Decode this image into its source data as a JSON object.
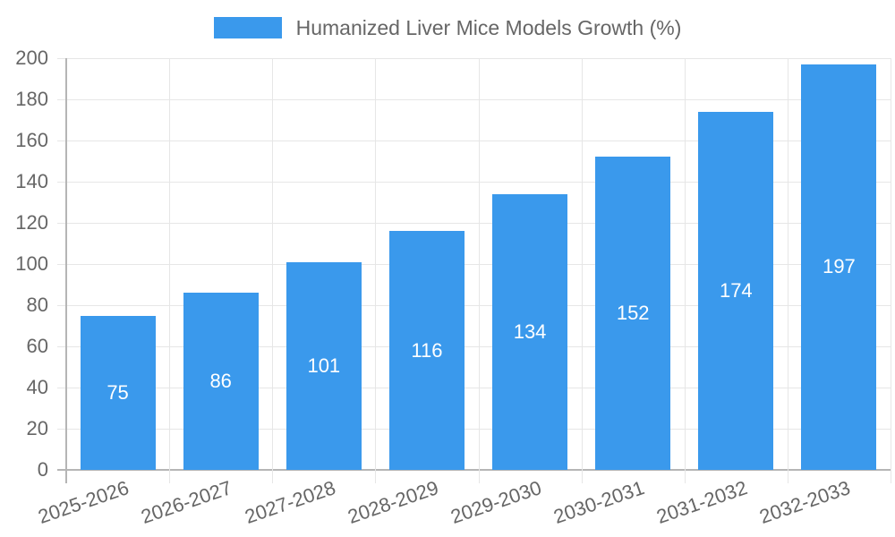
{
  "legend": {
    "label": "Humanized Liver Mice Models Growth (%)"
  },
  "chart_data": {
    "type": "bar",
    "title": "",
    "xlabel": "",
    "ylabel": "",
    "series_name": "Humanized Liver Mice Models Growth (%)",
    "categories": [
      "2025-2026",
      "2026-2027",
      "2027-2028",
      "2028-2029",
      "2029-2030",
      "2030-2031",
      "2031-2032",
      "2032-2033"
    ],
    "values": [
      75,
      86,
      101,
      116,
      134,
      152,
      174,
      197
    ],
    "ylim": [
      0,
      200
    ],
    "ytick_step": 20,
    "ytick_labels": [
      "0",
      "20",
      "40",
      "60",
      "80",
      "100",
      "120",
      "140",
      "160",
      "180",
      "200"
    ],
    "grid": true,
    "legend_position": "top",
    "x_label_rotation_deg": -19,
    "colors": {
      "bar": "#3A99EC",
      "value_label": "#FFFFFF",
      "tick_label": "#666666",
      "grid": "#E6E6E6",
      "axis_line": "#B5B5B5",
      "background": "#FFFFFF"
    }
  }
}
